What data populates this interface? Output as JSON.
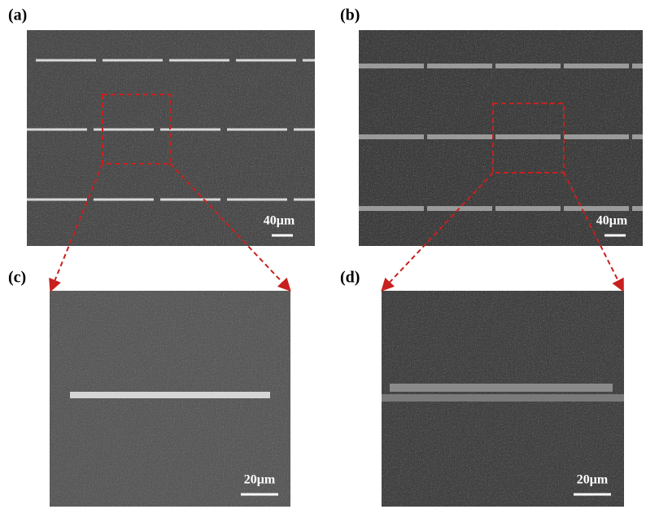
{
  "panels": [
    {
      "label": "(a)",
      "scale": "40μm"
    },
    {
      "label": "(b)",
      "scale": "40μm"
    },
    {
      "label": "(c)",
      "scale": "20μm"
    },
    {
      "label": "(d)",
      "scale": "20μm"
    }
  ]
}
